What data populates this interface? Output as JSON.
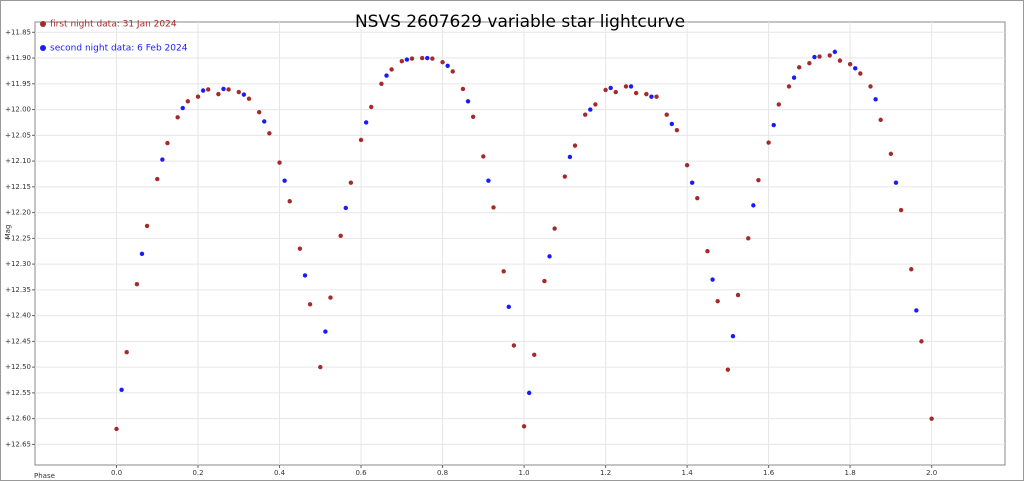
{
  "chart_data": {
    "type": "scatter",
    "title": "NSVS 2607629 variable star lightcurve",
    "x_label": "Phase",
    "y_label": "Mag",
    "legend": "upper left",
    "grid": true,
    "xlim": [
      -0.2,
      2.18
    ],
    "ylim": [
      12.69,
      11.83
    ],
    "xticks": [
      {
        "value": 0,
        "label": "0.0"
      },
      {
        "value": 0.2,
        "label": "0.2"
      },
      {
        "value": 0.4,
        "label": "0.4"
      },
      {
        "value": 0.6,
        "label": "0.6"
      },
      {
        "value": 0.8,
        "label": "0.8"
      },
      {
        "value": 1,
        "label": "1.0"
      },
      {
        "value": 1.2,
        "label": "1.2"
      },
      {
        "value": 1.4,
        "label": "1.4"
      },
      {
        "value": 1.6,
        "label": "1.6"
      },
      {
        "value": 1.8,
        "label": "1.8"
      },
      {
        "value": 2,
        "label": "2.0"
      }
    ],
    "yticks": [
      {
        "value": 11.85,
        "label": "+11.85"
      },
      {
        "value": 11.9,
        "label": "+11.90"
      },
      {
        "value": 11.95,
        "label": "+11.95"
      },
      {
        "value": 12.0,
        "label": "+12.00"
      },
      {
        "value": 12.05,
        "label": "+12.05"
      },
      {
        "value": 12.1,
        "label": "+12.10"
      },
      {
        "value": 12.15,
        "label": "+12.15"
      },
      {
        "value": 12.2,
        "label": "+12.20"
      },
      {
        "value": 12.25,
        "label": "+12.25"
      },
      {
        "value": 12.3,
        "label": "+12.30"
      },
      {
        "value": 12.35,
        "label": "+12.35"
      },
      {
        "value": 12.4,
        "label": "+12.40"
      },
      {
        "value": 12.45,
        "label": "+12.45"
      },
      {
        "value": 12.5,
        "label": "+12.50"
      },
      {
        "value": 12.55,
        "label": "+12.55"
      },
      {
        "value": 12.6,
        "label": "+12.60"
      },
      {
        "value": 12.65,
        "label": "+12.65"
      }
    ],
    "series": [
      {
        "name": "first night data: 31 Jan 2024",
        "color": "#a52a2a",
        "x": [
          0,
          0.025,
          0.05,
          0.075,
          0.1,
          0.125,
          0.15,
          0.175,
          0.2,
          0.225,
          0.25,
          0.275,
          0.3,
          0.325,
          0.35,
          0.375,
          0.4,
          0.425,
          0.45,
          0.475,
          0.5,
          0.525,
          0.55,
          0.575,
          0.6,
          0.625,
          0.65,
          0.675,
          0.7,
          0.725,
          0.75,
          0.775,
          0.8,
          0.825,
          0.85,
          0.875,
          0.9,
          0.925,
          0.95,
          0.975,
          1,
          1.025,
          1.05,
          1.075,
          1.1,
          1.125,
          1.15,
          1.175,
          1.2,
          1.225,
          1.25,
          1.275,
          1.3,
          1.325,
          1.35,
          1.375,
          1.4,
          1.425,
          1.45,
          1.475,
          1.5,
          1.525,
          1.55,
          1.575,
          1.6,
          1.625,
          1.65,
          1.675,
          1.7,
          1.725,
          1.75,
          1.775,
          1.8,
          1.825,
          1.85,
          1.875,
          1.9,
          1.925,
          1.95,
          1.975,
          2
        ],
        "values": [
          12.62,
          12.471,
          12.339,
          12.226,
          12.135,
          12.065,
          12.015,
          11.984,
          11.975,
          11.961,
          11.97,
          11.961,
          11.966,
          11.979,
          12.005,
          12.046,
          12.103,
          12.178,
          12.27,
          12.378,
          12.5,
          12.365,
          12.245,
          12.142,
          12.059,
          11.995,
          11.95,
          11.922,
          11.906,
          11.901,
          11.9,
          11.901,
          11.908,
          11.926,
          11.96,
          12.014,
          12.091,
          12.19,
          12.314,
          12.458,
          12.615,
          12.476,
          12.333,
          12.231,
          12.13,
          12.07,
          12.01,
          11.99,
          11.962,
          11.966,
          11.955,
          11.968,
          11.97,
          11.975,
          12.01,
          12.04,
          12.108,
          12.172,
          12.275,
          12.372,
          12.505,
          12.36,
          12.25,
          12.137,
          12.064,
          11.99,
          11.955,
          11.918,
          11.91,
          11.897,
          11.895,
          11.905,
          11.912,
          11.93,
          11.955,
          12.02,
          12.086,
          12.195,
          12.31,
          12.45,
          12.6
        ]
      },
      {
        "name": "second night data: 6 Feb 2024",
        "color": "#1a1aff",
        "x": [
          0.0125,
          0.0625,
          0.1125,
          0.1625,
          0.2125,
          0.2625,
          0.3125,
          0.3625,
          0.4125,
          0.4625,
          0.5125,
          0.5625,
          0.6125,
          0.6625,
          0.7125,
          0.7625,
          0.8125,
          0.8625,
          0.9125,
          0.9625,
          1.0125,
          1.0625,
          1.1125,
          1.1625,
          1.2125,
          1.2625,
          1.3125,
          1.3625,
          1.4125,
          1.4625,
          1.5125,
          1.5625,
          1.6125,
          1.6625,
          1.7125,
          1.7625,
          1.8125,
          1.8625,
          1.9125,
          1.9625
        ],
        "values": [
          12.544,
          12.28,
          12.097,
          11.997,
          11.963,
          11.96,
          11.971,
          12.023,
          12.138,
          12.322,
          12.431,
          12.191,
          12.025,
          11.934,
          11.903,
          11.9,
          11.915,
          11.984,
          12.138,
          12.383,
          12.55,
          12.285,
          12.092,
          12.0,
          11.958,
          11.955,
          11.975,
          12.028,
          12.142,
          12.33,
          12.44,
          12.186,
          12.03,
          11.938,
          11.898,
          11.888,
          11.92,
          11.98,
          12.142,
          12.39
        ]
      }
    ]
  }
}
